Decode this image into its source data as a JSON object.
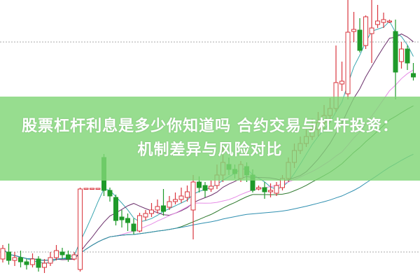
{
  "title": {
    "line1": "股票杠杆利息是多少你知道吗 合约交易与杠杆投资：",
    "line2": "机制差异与风险对比"
  },
  "colors": {
    "up": "#d9363e",
    "down": "#1f9a2a",
    "banner": "#80d676",
    "ma5": "#3aa6b0",
    "ma10": "#6b2f6b",
    "ma20": "#e68ce6",
    "ma30": "#2f7a2f",
    "ma60": "#2f8fb0"
  },
  "chart_data": {
    "type": "candlestick",
    "ohlc": [
      [
        30,
        45,
        50,
        25
      ],
      [
        40,
        28,
        52,
        22
      ],
      [
        28,
        32,
        40,
        20
      ],
      [
        32,
        26,
        42,
        18
      ],
      [
        26,
        22,
        30,
        15
      ],
      [
        22,
        30,
        38,
        18
      ],
      [
        30,
        18,
        34,
        12
      ],
      [
        18,
        24,
        30,
        10
      ],
      [
        24,
        32,
        40,
        20
      ],
      [
        32,
        42,
        50,
        28
      ],
      [
        40,
        36,
        46,
        30
      ],
      [
        36,
        30,
        42,
        26
      ],
      [
        30,
        36,
        40,
        28
      ],
      [
        15,
        130,
        132,
        12
      ],
      [
        130,
        131,
        131,
        130
      ],
      [
        130,
        131,
        131,
        130
      ],
      [
        130,
        131,
        131,
        130
      ],
      [
        175,
        128,
        180,
        120
      ],
      [
        128,
        120,
        132,
        112
      ],
      [
        118,
        85,
        122,
        78
      ],
      [
        90,
        86,
        100,
        75
      ],
      [
        88,
        82,
        95,
        70
      ],
      [
        80,
        70,
        88,
        65
      ],
      [
        70,
        92,
        96,
        68
      ],
      [
        90,
        95,
        100,
        85
      ],
      [
        95,
        100,
        110,
        90
      ],
      [
        100,
        105,
        115,
        95
      ],
      [
        106,
        98,
        130,
        92
      ],
      [
        104,
        112,
        120,
        100
      ],
      [
        112,
        115,
        125,
        108
      ],
      [
        115,
        120,
        132,
        110
      ],
      [
        118,
        126,
        135,
        112
      ],
      [
        100,
        140,
        150,
        58
      ],
      [
        140,
        132,
        148,
        125
      ],
      [
        135,
        128,
        140,
        118
      ],
      [
        130,
        134,
        142,
        126
      ],
      [
        135,
        150,
        165,
        130
      ],
      [
        150,
        168,
        190,
        140
      ],
      [
        165,
        158,
        175,
        150
      ],
      [
        158,
        152,
        165,
        145
      ],
      [
        145,
        165,
        170,
        140
      ],
      [
        162,
        150,
        168,
        140
      ],
      [
        150,
        128,
        158,
        125
      ],
      [
        130,
        132,
        135,
        128
      ],
      [
        132,
        126,
        140,
        116
      ],
      [
        126,
        128,
        138,
        118
      ],
      [
        124,
        135,
        140,
        120
      ],
      [
        132,
        145,
        150,
        128
      ],
      [
        145,
        168,
        175,
        140
      ],
      [
        168,
        185,
        195,
        160
      ],
      [
        185,
        195,
        205,
        180
      ],
      [
        195,
        205,
        215,
        190
      ],
      [
        205,
        215,
        230,
        200
      ],
      [
        215,
        225,
        240,
        205
      ],
      [
        225,
        235,
        250,
        215
      ],
      [
        235,
        245,
        260,
        225
      ],
      [
        245,
        282,
        335,
        240
      ],
      [
        280,
        284,
        312,
        270
      ],
      [
        266,
        354,
        400,
        258
      ],
      [
        355,
        358,
        383,
        340
      ],
      [
        357,
        328,
        374,
        325
      ],
      [
        335,
        376,
        378,
        330
      ],
      [
        352,
        360,
        400,
        310
      ],
      [
        365,
        370,
        393,
        360
      ],
      [
        368,
        372,
        382,
        360
      ],
      [
        370,
        370,
        372,
        367
      ],
      [
        355,
        297,
        372,
        258
      ],
      [
        312,
        330,
        340,
        302
      ],
      [
        330,
        310,
        335,
        300
      ],
      [
        295,
        290,
        310,
        285
      ]
    ],
    "moving_averages": [
      5,
      10,
      20,
      30,
      60
    ],
    "grid": "two dotted horizontal lines",
    "axes": "none shown"
  }
}
